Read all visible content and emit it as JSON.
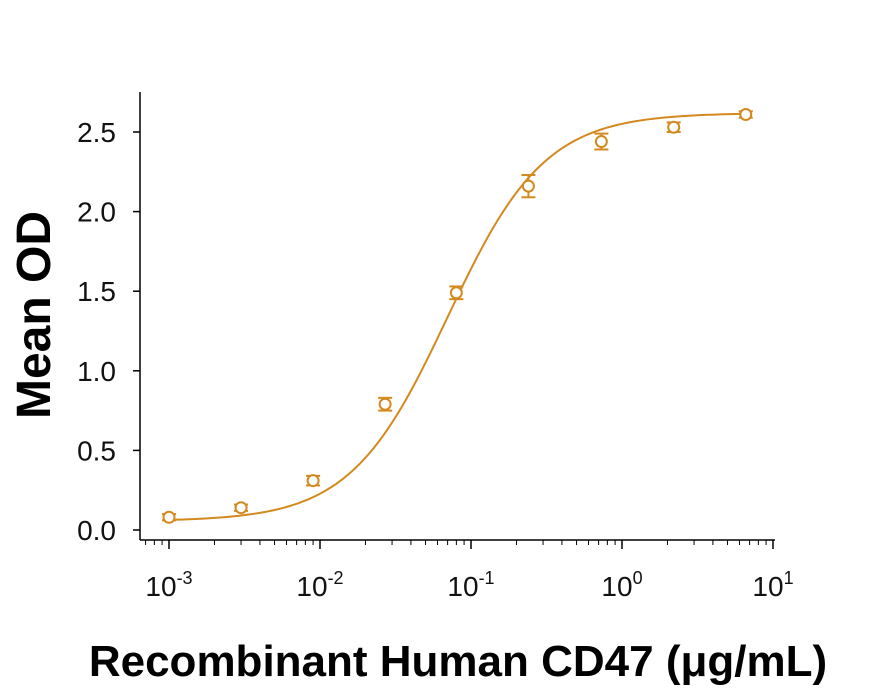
{
  "chart_data": {
    "type": "scatter",
    "x_scale": "log",
    "xlabel": "Recombinant Human CD47 (μg/mL)",
    "ylabel": "Mean OD",
    "xlim": [
      0.0007,
      10
    ],
    "ylim": [
      0,
      2.7
    ],
    "x_ticks": [
      {
        "value": 0.001,
        "base": "10",
        "exp": "-3"
      },
      {
        "value": 0.01,
        "base": "10",
        "exp": "-2"
      },
      {
        "value": 0.1,
        "base": "10",
        "exp": "-1"
      },
      {
        "value": 1,
        "base": "10",
        "exp": "0"
      },
      {
        "value": 10,
        "base": "10",
        "exp": "1"
      }
    ],
    "y_ticks": [
      {
        "value": 0.0,
        "label": "0.0"
      },
      {
        "value": 0.5,
        "label": "0.5"
      },
      {
        "value": 1.0,
        "label": "1.0"
      },
      {
        "value": 1.5,
        "label": "1.5"
      },
      {
        "value": 2.0,
        "label": "2.0"
      },
      {
        "value": 2.5,
        "label": "2.5"
      }
    ],
    "grid": false,
    "color": "#D4891F",
    "series": [
      {
        "points": [
          {
            "x": 0.001,
            "y": 0.08,
            "err": 0.02
          },
          {
            "x": 0.003,
            "y": 0.14,
            "err": 0.02
          },
          {
            "x": 0.009,
            "y": 0.31,
            "err": 0.03
          },
          {
            "x": 0.027,
            "y": 0.79,
            "err": 0.04
          },
          {
            "x": 0.08,
            "y": 1.49,
            "err": 0.04
          },
          {
            "x": 0.24,
            "y": 2.16,
            "err": 0.07
          },
          {
            "x": 0.73,
            "y": 2.44,
            "err": 0.05
          },
          {
            "x": 2.2,
            "y": 2.53,
            "err": 0.03
          },
          {
            "x": 6.6,
            "y": 2.61,
            "err": 0.02
          }
        ]
      }
    ]
  }
}
